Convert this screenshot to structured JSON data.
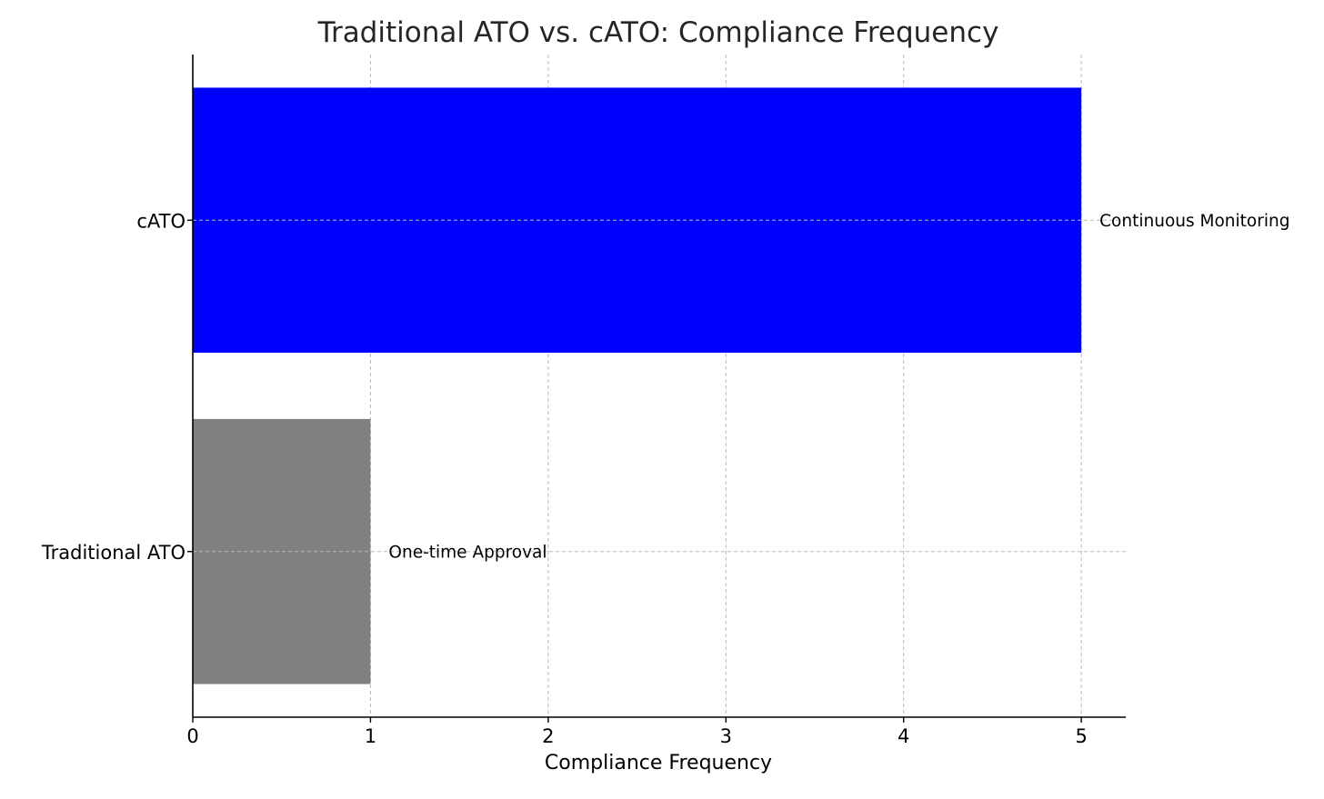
{
  "chart_data": {
    "type": "bar",
    "orientation": "horizontal",
    "title": "Traditional ATO vs. cATO: Compliance Frequency",
    "xlabel": "Compliance Frequency",
    "ylabel": "",
    "categories": [
      "Traditional ATO",
      "cATO"
    ],
    "values": [
      1,
      5
    ],
    "colors": [
      "#808080",
      "#0000ff"
    ],
    "annotations": [
      "One-time Approval",
      "Continuous Monitoring"
    ],
    "xlim": [
      0,
      5.25
    ],
    "xticks": [
      "0",
      "1",
      "2",
      "3",
      "4",
      "5"
    ],
    "grid": true
  }
}
